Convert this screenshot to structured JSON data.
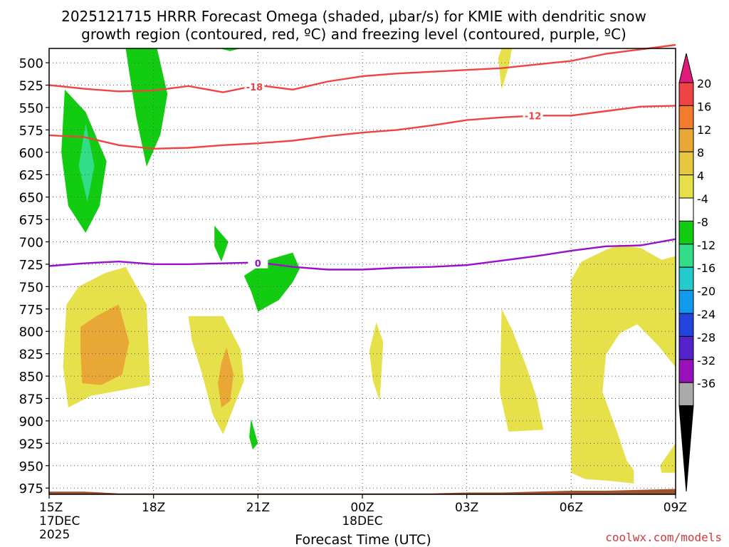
{
  "title_line1": "2025121715 HRRR Forecast Omega (shaded, μbar/s) for KMIE with dendritic snow",
  "title_line2": "growth region (contoured, red, ºC) and freezing level (contoured, purple, ºC)",
  "xlabel": "Forecast Time (UTC)",
  "watermark": "coolwx.com/models",
  "colors": {
    "snow_contour": "#ee4444",
    "freezing_contour": "#9a10c8",
    "ground": "#a0522d",
    "grid": "#555555"
  },
  "chart_data": {
    "type": "heatmap",
    "y_axis": {
      "unit": "hPa",
      "inverted": true,
      "ticks": [
        500,
        525,
        550,
        575,
        600,
        625,
        650,
        675,
        700,
        725,
        750,
        775,
        800,
        825,
        850,
        875,
        900,
        925,
        950,
        975
      ],
      "range": [
        484,
        982
      ]
    },
    "x_axis": {
      "range_hours": [
        0,
        18
      ],
      "ticks": [
        {
          "h": 0,
          "label": "15Z",
          "sub1": "17DEC",
          "sub2": "2025"
        },
        {
          "h": 3,
          "label": "18Z",
          "sub1": "",
          "sub2": ""
        },
        {
          "h": 6,
          "label": "21Z",
          "sub1": "",
          "sub2": ""
        },
        {
          "h": 9,
          "label": "00Z",
          "sub1": "18DEC",
          "sub2": ""
        },
        {
          "h": 12,
          "label": "03Z",
          "sub1": "",
          "sub2": ""
        },
        {
          "h": 15,
          "label": "06Z",
          "sub1": "",
          "sub2": ""
        },
        {
          "h": 18,
          "label": "09Z",
          "sub1": "",
          "sub2": ""
        }
      ],
      "grid": "dotted"
    },
    "colorbar": {
      "labels": [
        "20",
        "16",
        "12",
        "8",
        "4",
        "-4",
        "-8",
        "-12",
        "-16",
        "-20",
        "-24",
        "-28",
        "-32",
        "-36"
      ],
      "colors": [
        "#ee4444",
        "#f47a2e",
        "#e9a835",
        "#e6c840",
        "#e6e04a",
        "#ffffff",
        "#11cc11",
        "#33dd88",
        "#22cccc",
        "#1199ee",
        "#2244dd",
        "#5522cc",
        "#9911bb",
        "#aaaaaa"
      ],
      "top_arrow": "#e0197a",
      "bottom_arrow": "#000000"
    },
    "contours": [
      {
        "name": "-18",
        "color": "#ee4444",
        "label": "-18",
        "label_at": {
          "h": 5.9,
          "p": 527
        },
        "points": [
          [
            0,
            525
          ],
          [
            1,
            529
          ],
          [
            2,
            532
          ],
          [
            3,
            531
          ],
          [
            4,
            526
          ],
          [
            5,
            533
          ],
          [
            6,
            525
          ],
          [
            7,
            530
          ],
          [
            8,
            521
          ],
          [
            9,
            515
          ],
          [
            10,
            512
          ],
          [
            11,
            510
          ],
          [
            12,
            508
          ],
          [
            13,
            506
          ],
          [
            14,
            502
          ],
          [
            15,
            498
          ],
          [
            16,
            490
          ],
          [
            17,
            485
          ],
          [
            18,
            480
          ]
        ]
      },
      {
        "name": "-12",
        "color": "#ee4444",
        "label": "-12",
        "label_at": {
          "h": 13.9,
          "p": 559
        },
        "points": [
          [
            0,
            581
          ],
          [
            1,
            583
          ],
          [
            2,
            592
          ],
          [
            3,
            596
          ],
          [
            4,
            595
          ],
          [
            5,
            592
          ],
          [
            6,
            590
          ],
          [
            7,
            587
          ],
          [
            8,
            582
          ],
          [
            9,
            578
          ],
          [
            10,
            575
          ],
          [
            11,
            570
          ],
          [
            12,
            564
          ],
          [
            13,
            561
          ],
          [
            14,
            559
          ],
          [
            15,
            559
          ],
          [
            16,
            554
          ],
          [
            17,
            549
          ],
          [
            18,
            548
          ]
        ]
      },
      {
        "name": "0",
        "color": "#9a10c8",
        "label": "0",
        "label_at": {
          "h": 6.0,
          "p": 724
        },
        "points": [
          [
            0,
            727
          ],
          [
            1,
            724
          ],
          [
            2,
            722
          ],
          [
            3,
            725
          ],
          [
            4,
            725
          ],
          [
            5,
            724
          ],
          [
            6,
            723
          ],
          [
            7,
            728
          ],
          [
            8,
            731
          ],
          [
            9,
            731
          ],
          [
            10,
            729
          ],
          [
            11,
            728
          ],
          [
            12,
            726
          ],
          [
            13,
            721
          ],
          [
            14,
            716
          ],
          [
            15,
            710
          ],
          [
            16,
            705
          ],
          [
            17,
            704
          ],
          [
            18,
            697
          ]
        ]
      }
    ],
    "shaded_regions": [
      {
        "value": -6,
        "color": "#11cc11",
        "points": [
          [
            2.2,
            470
          ],
          [
            3.1,
            470
          ],
          [
            3.4,
            535
          ],
          [
            3.2,
            580
          ],
          [
            2.8,
            616
          ],
          [
            2.5,
            560
          ],
          [
            2.3,
            510
          ]
        ]
      },
      {
        "value": -6,
        "color": "#11cc11",
        "points": [
          [
            5.0,
            470
          ],
          [
            5.5,
            470
          ],
          [
            5.2,
            487
          ],
          [
            4.9,
            477
          ]
        ]
      },
      {
        "value": -6,
        "color": "#11cc11",
        "points": [
          [
            0.45,
            530
          ],
          [
            1.05,
            555
          ],
          [
            1.65,
            610
          ],
          [
            1.45,
            660
          ],
          [
            1.05,
            690
          ],
          [
            0.55,
            660
          ],
          [
            0.35,
            600
          ]
        ]
      },
      {
        "value": -10,
        "color": "#33dd88",
        "points": [
          [
            1.05,
            568
          ],
          [
            1.3,
            615
          ],
          [
            1.1,
            655
          ],
          [
            0.85,
            615
          ]
        ]
      },
      {
        "value": -6,
        "color": "#11cc11",
        "points": [
          [
            4.75,
            682
          ],
          [
            5.15,
            700
          ],
          [
            4.95,
            722
          ],
          [
            4.75,
            705
          ]
        ]
      },
      {
        "value": -6,
        "color": "#11cc11",
        "points": [
          [
            5.6,
            738
          ],
          [
            6.3,
            720
          ],
          [
            7.0,
            712
          ],
          [
            7.2,
            730
          ],
          [
            7.0,
            745
          ],
          [
            6.6,
            765
          ],
          [
            6.0,
            778
          ],
          [
            5.8,
            755
          ]
        ]
      },
      {
        "value": -6,
        "color": "#11cc11",
        "points": [
          [
            5.8,
            898
          ],
          [
            6.0,
            925
          ],
          [
            5.85,
            932
          ],
          [
            5.75,
            918
          ]
        ]
      },
      {
        "value": 4,
        "color": "#e6e04a",
        "points": [
          [
            13.0,
            470
          ],
          [
            13.3,
            470
          ],
          [
            13.2,
            505
          ],
          [
            13.0,
            530
          ],
          [
            12.9,
            495
          ]
        ]
      },
      {
        "value": 4,
        "color": "#e6e04a",
        "points": [
          [
            0.5,
            770
          ],
          [
            0.85,
            750
          ],
          [
            1.6,
            735
          ],
          [
            2.2,
            728
          ],
          [
            2.8,
            770
          ],
          [
            2.9,
            860
          ],
          [
            2.2,
            865
          ],
          [
            1.2,
            872
          ],
          [
            0.55,
            885
          ],
          [
            0.4,
            840
          ]
        ]
      },
      {
        "value": 8,
        "color": "#e9a835",
        "points": [
          [
            0.9,
            795
          ],
          [
            1.4,
            782
          ],
          [
            2.0,
            770
          ],
          [
            2.3,
            812
          ],
          [
            2.1,
            848
          ],
          [
            1.5,
            860
          ],
          [
            0.95,
            858
          ],
          [
            0.9,
            820
          ]
        ]
      },
      {
        "value": 4,
        "color": "#e6e04a",
        "points": [
          [
            4.0,
            783
          ],
          [
            5.0,
            783
          ],
          [
            5.5,
            820
          ],
          [
            5.6,
            855
          ],
          [
            5.2,
            895
          ],
          [
            5.0,
            915
          ],
          [
            4.7,
            893
          ],
          [
            4.4,
            848
          ],
          [
            4.1,
            810
          ]
        ]
      },
      {
        "value": 8,
        "color": "#e9a835",
        "points": [
          [
            4.95,
            835
          ],
          [
            5.1,
            818
          ],
          [
            5.3,
            848
          ],
          [
            5.2,
            878
          ],
          [
            4.95,
            885
          ],
          [
            4.85,
            858
          ]
        ]
      },
      {
        "value": 4,
        "color": "#e6e04a",
        "points": [
          [
            9.4,
            790
          ],
          [
            9.6,
            812
          ],
          [
            9.5,
            878
          ],
          [
            9.3,
            855
          ],
          [
            9.2,
            822
          ]
        ]
      },
      {
        "value": 4,
        "color": "#e6e04a",
        "points": [
          [
            13.0,
            775
          ],
          [
            13.3,
            798
          ],
          [
            13.7,
            838
          ],
          [
            14.0,
            873
          ],
          [
            14.2,
            910
          ],
          [
            13.2,
            912
          ],
          [
            12.95,
            868
          ]
        ]
      },
      {
        "value": 4,
        "color": "#e6e04a",
        "points": [
          [
            15.0,
            742
          ],
          [
            15.3,
            722
          ],
          [
            16.0,
            709
          ],
          [
            16.4,
            703
          ],
          [
            17.0,
            707
          ],
          [
            17.6,
            720
          ],
          [
            18.0,
            716
          ],
          [
            18.0,
            840
          ],
          [
            17.5,
            816
          ],
          [
            16.9,
            792
          ],
          [
            16.4,
            802
          ],
          [
            16.0,
            826
          ],
          [
            15.9,
            868
          ],
          [
            16.3,
            910
          ],
          [
            16.6,
            945
          ],
          [
            16.8,
            955
          ],
          [
            16.8,
            970
          ],
          [
            16.1,
            967
          ],
          [
            15.4,
            965
          ],
          [
            15.0,
            958
          ]
        ]
      },
      {
        "value": 4,
        "color": "#e6e04a",
        "points": [
          [
            17.55,
            950
          ],
          [
            18.0,
            925
          ],
          [
            18.0,
            958
          ],
          [
            17.6,
            958
          ]
        ]
      }
    ],
    "ground": {
      "color": "#a0522d",
      "points": [
        [
          0,
          979
        ],
        [
          1,
          979
        ],
        [
          2,
          981
        ],
        [
          3,
          981
        ],
        [
          4,
          981
        ],
        [
          5,
          981
        ],
        [
          6,
          981
        ],
        [
          7,
          981
        ],
        [
          8,
          981
        ],
        [
          9,
          981
        ],
        [
          10,
          981
        ],
        [
          11,
          981
        ],
        [
          12,
          980
        ],
        [
          13,
          980
        ],
        [
          14,
          979
        ],
        [
          15,
          978
        ],
        [
          16,
          978
        ],
        [
          17,
          977
        ],
        [
          18,
          976
        ]
      ]
    }
  }
}
